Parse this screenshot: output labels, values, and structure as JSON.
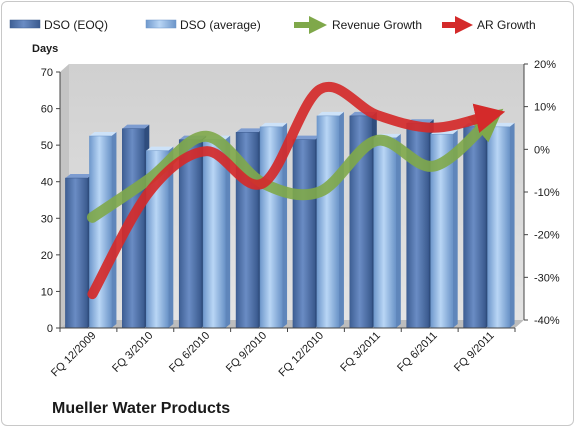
{
  "company_name": "Mueller Water Products",
  "colors": {
    "dso_eoq": "#5b7db4",
    "dso_average": "#a9c9ef",
    "revenue_growth": "#7fa84a",
    "ar_growth": "#d42a2a",
    "plot_background": "#d9d9d9"
  },
  "chart_data": {
    "type": "bar",
    "categories": [
      "FQ 12/2009",
      "FQ 3/2010",
      "FQ 6/2010",
      "FQ 9/2010",
      "FQ 12/2010",
      "FQ 3/2011",
      "FQ 6/2011",
      "FQ 9/2011"
    ],
    "ylabel": "Days",
    "ylim": [
      0,
      70
    ],
    "yticks": [
      0,
      10,
      20,
      30,
      40,
      50,
      60,
      70
    ],
    "y2lim": [
      -40,
      20
    ],
    "y2ticks": [
      "-40%",
      "-30%",
      "-20%",
      "-10%",
      "0%",
      "10%",
      "20%"
    ],
    "y2tick_values": [
      -40,
      -30,
      -20,
      -10,
      0,
      10,
      20
    ],
    "legend_position": "top",
    "grid": false,
    "series": [
      {
        "name": "DSO (EOQ)",
        "type": "bar",
        "axis": "left",
        "values": [
          41,
          54.5,
          51.5,
          53.5,
          51.5,
          58,
          56,
          55
        ]
      },
      {
        "name": "DSO (average)",
        "type": "bar",
        "axis": "left",
        "values": [
          52.5,
          48.5,
          51.5,
          55,
          58,
          52,
          53,
          55
        ]
      },
      {
        "name": "Revenue Growth",
        "type": "line",
        "axis": "right",
        "unit": "%",
        "values": [
          -15,
          -6,
          4,
          -7,
          -9,
          3,
          -3,
          8
        ]
      },
      {
        "name": "AR Growth",
        "type": "line",
        "axis": "right",
        "unit": "%",
        "values": [
          -33,
          -9,
          0.5,
          -7,
          15,
          9,
          6,
          9
        ]
      }
    ]
  }
}
